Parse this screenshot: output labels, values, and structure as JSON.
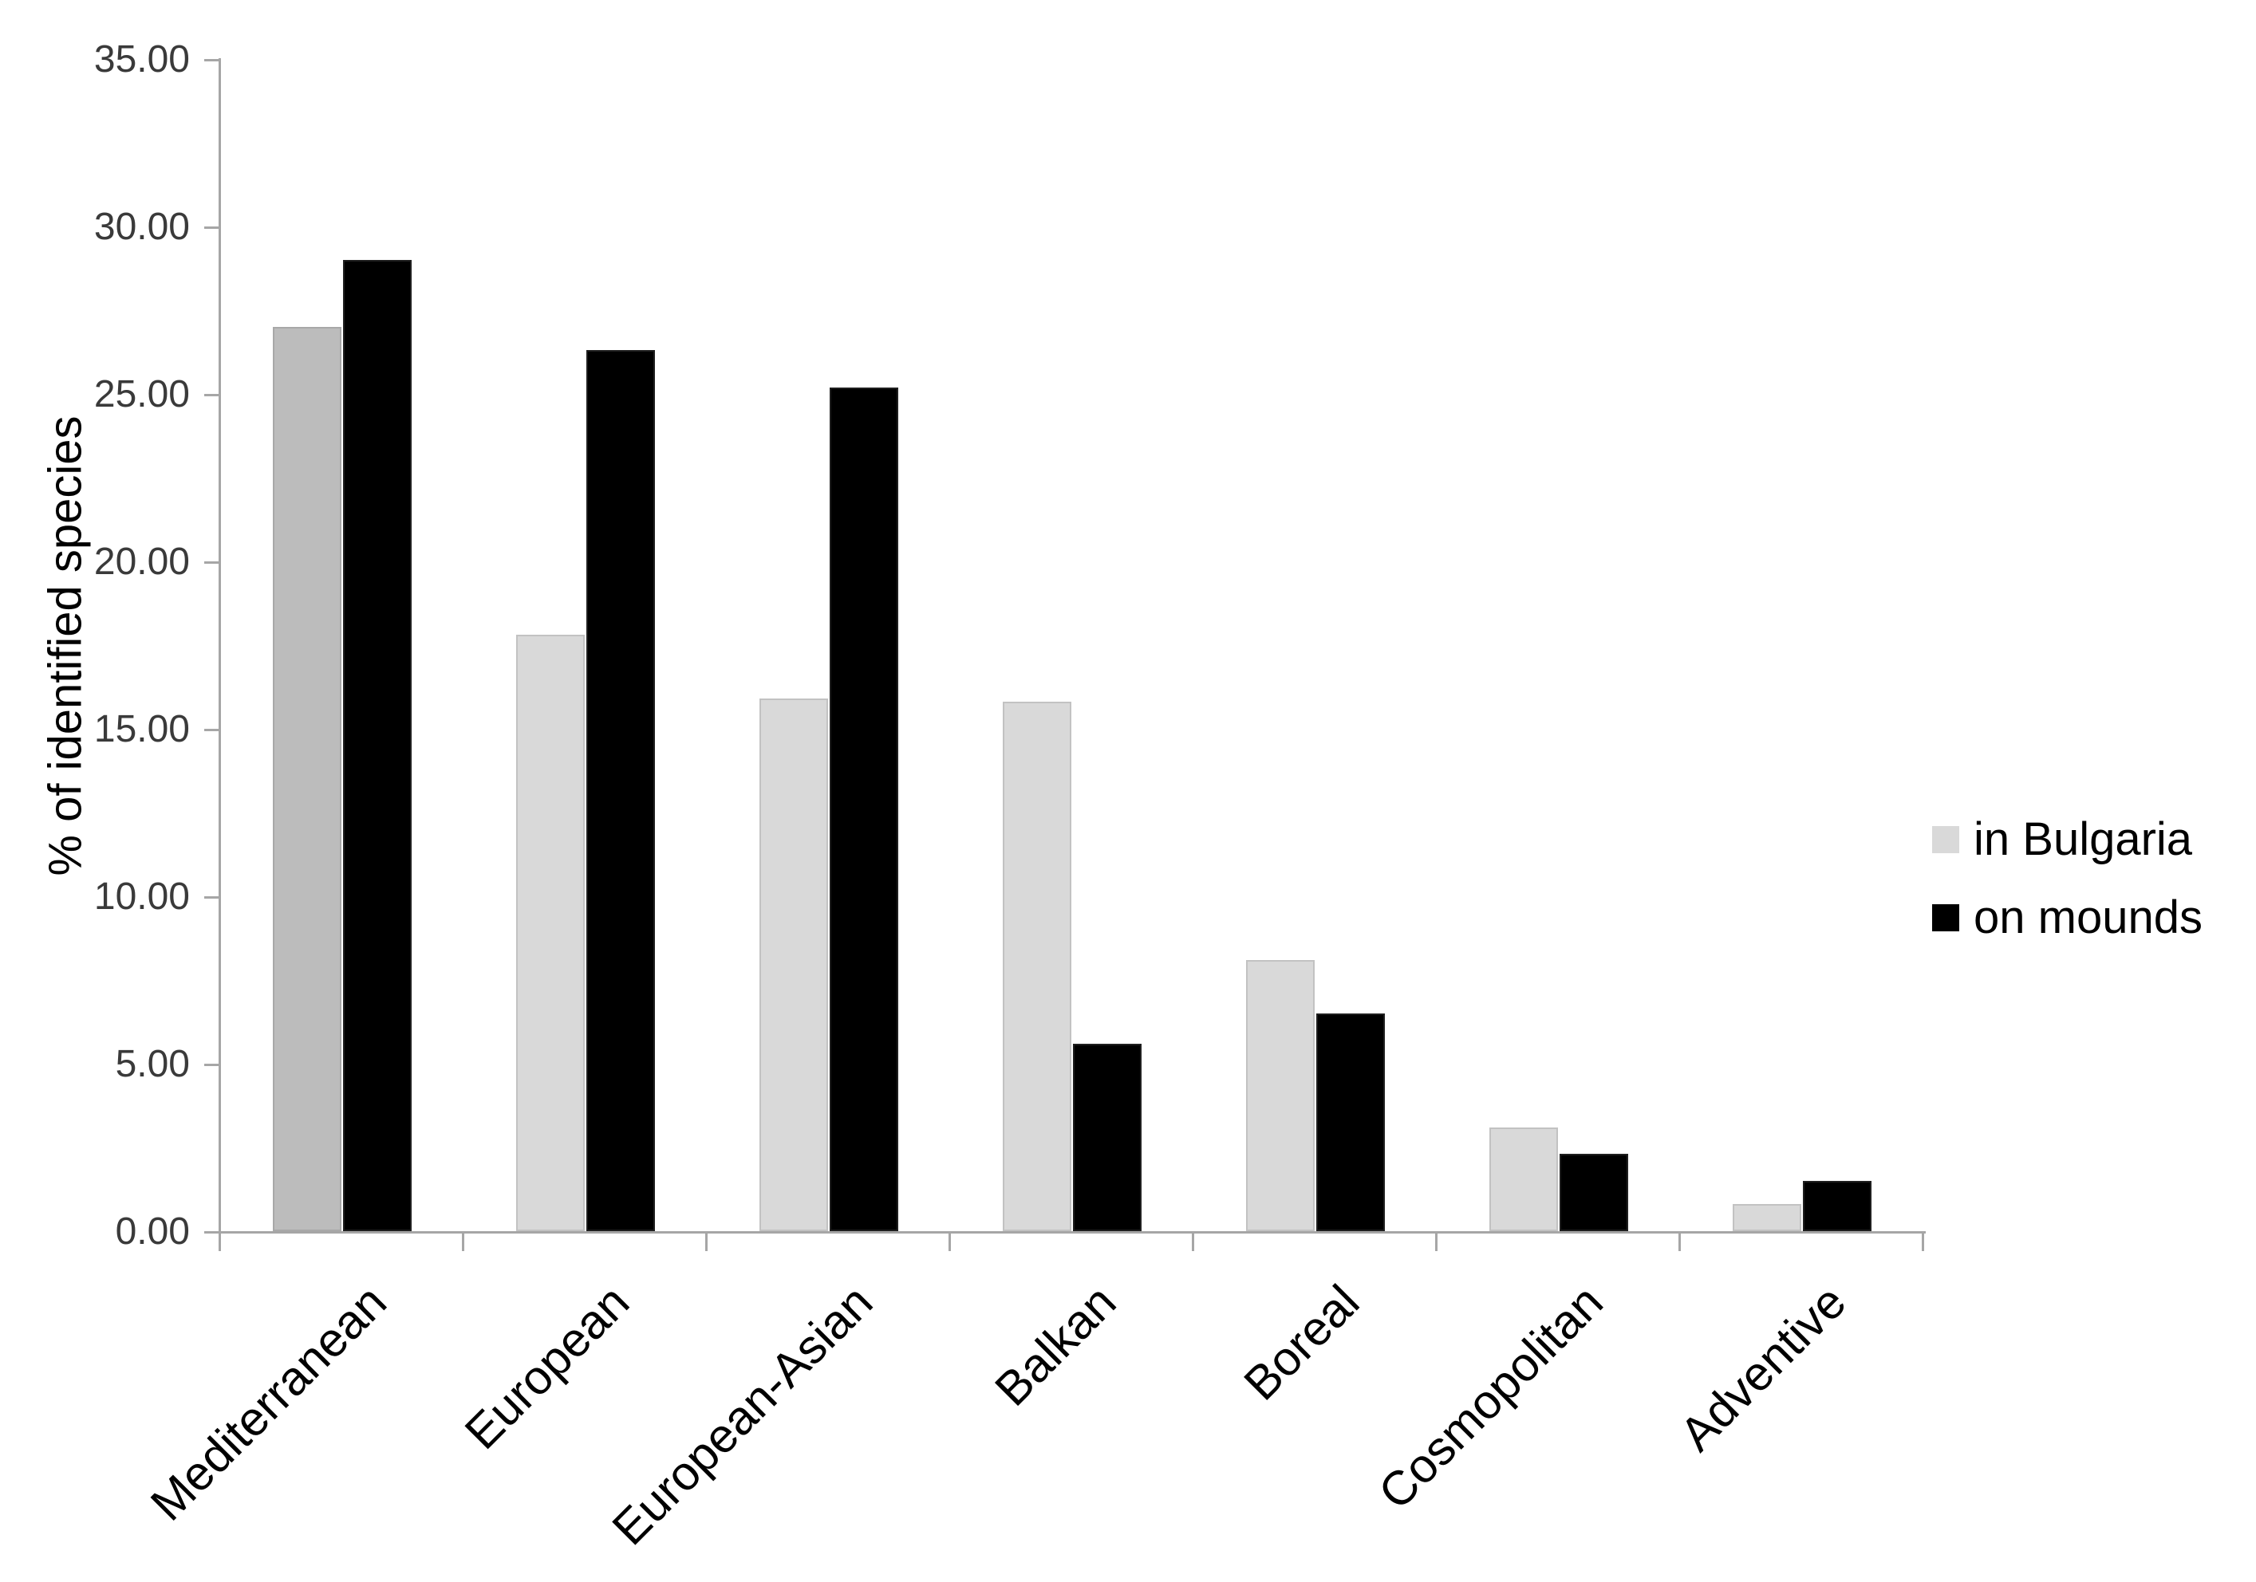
{
  "chart_data": {
    "type": "bar",
    "title": "",
    "categories": [
      "Mediterranean",
      "European",
      "European-Asian",
      "Balkan",
      "Boreal",
      "Cosmopolitan",
      "Adventive"
    ],
    "series": [
      {
        "name": "in Bulgaria",
        "values": [
          27.0,
          17.8,
          15.9,
          15.8,
          8.1,
          3.1,
          0.8
        ],
        "color": "#d9d9d9",
        "point_colors": [
          "#bcbcbc",
          "#d9d9d9",
          "#d9d9d9",
          "#d9d9d9",
          "#d9d9d9",
          "#d9d9d9",
          "#d9d9d9"
        ]
      },
      {
        "name": "on mounds",
        "values": [
          29.0,
          26.3,
          25.2,
          5.6,
          6.5,
          2.3,
          1.5
        ],
        "color": "#000000",
        "point_colors": [
          "#000000",
          "#000000",
          "#000000",
          "#000000",
          "#000000",
          "#000000",
          "#000000"
        ]
      }
    ],
    "xlabel": "",
    "ylabel": "% of identified species",
    "ylim": [
      0,
      35
    ],
    "ytick_step": 5,
    "ytick_labels": [
      "0.00",
      "5.00",
      "10.00",
      "15.00",
      "20.00",
      "25.00",
      "30.00",
      "35.00"
    ],
    "grid": false,
    "legend_position": "right"
  },
  "colors": {
    "axis": "#a6a6a6",
    "tick_label": "#3a3a3a",
    "background": "#ffffff"
  }
}
